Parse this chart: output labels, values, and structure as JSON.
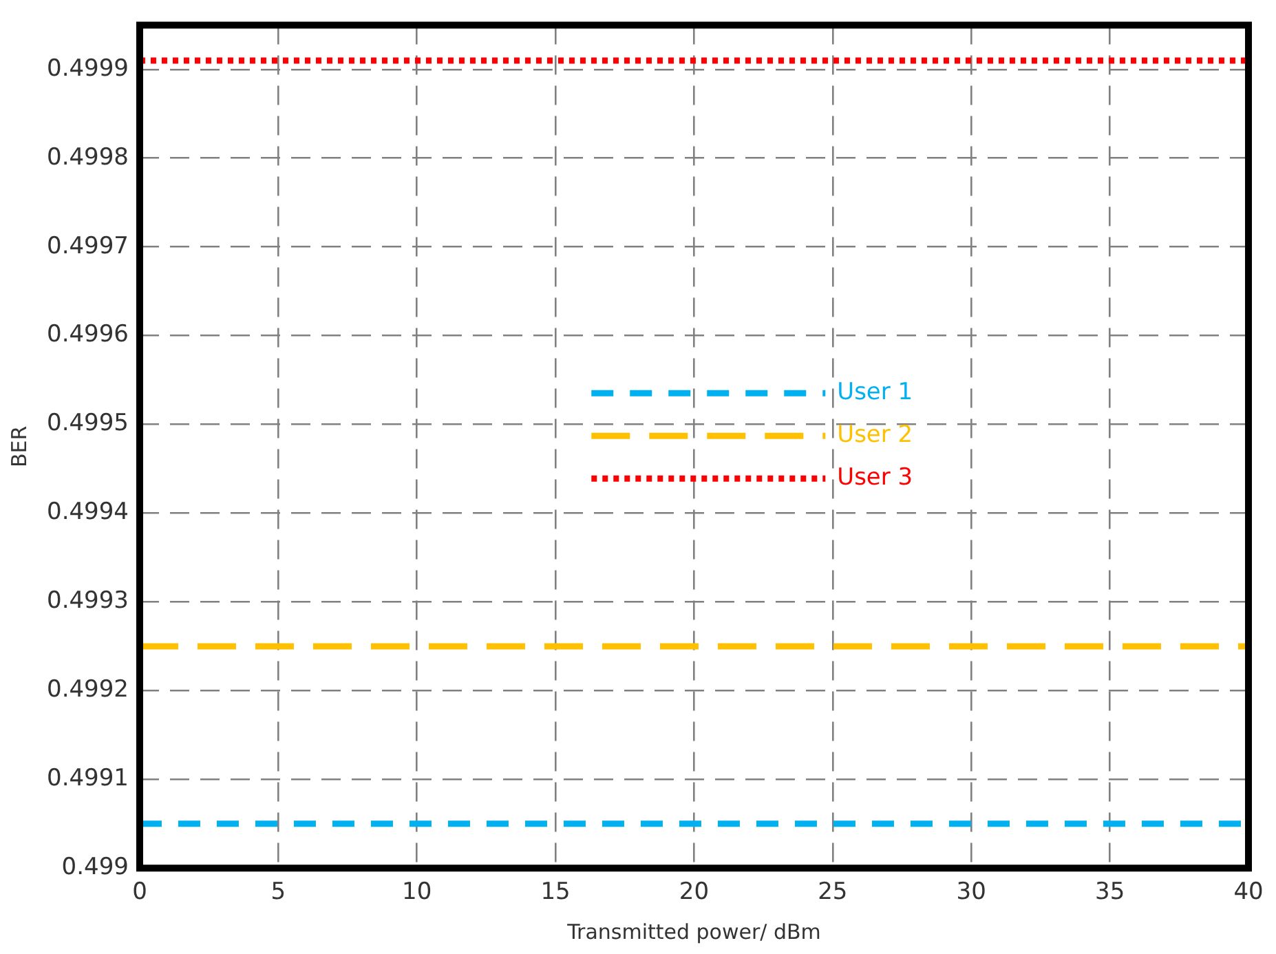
{
  "chart_data": {
    "type": "line",
    "xlabel": "Transmitted power/ dBm",
    "ylabel": "BER",
    "x": [
      0,
      40
    ],
    "series": [
      {
        "name": "User 1",
        "color": "#00b0f0",
        "values": [
          0.49905,
          0.49905
        ],
        "line_style": "dashed"
      },
      {
        "name": "User 2",
        "color": "#ffc000",
        "values": [
          0.49925,
          0.49925
        ],
        "line_style": "dashed"
      },
      {
        "name": "User 3",
        "color": "#ff0000",
        "values": [
          0.49991,
          0.49991
        ],
        "line_style": "dotted"
      }
    ],
    "xlim": [
      0,
      40
    ],
    "xticks": [
      0,
      5,
      10,
      15,
      20,
      25,
      30,
      35,
      40
    ],
    "ylim": [
      0.499,
      0.49995
    ],
    "yticks": [
      0.499,
      0.4991,
      0.4992,
      0.4993,
      0.4994,
      0.4995,
      0.4996,
      0.4997,
      0.4998,
      0.4999
    ],
    "grid": true,
    "legend": "center",
    "marker": "none"
  }
}
